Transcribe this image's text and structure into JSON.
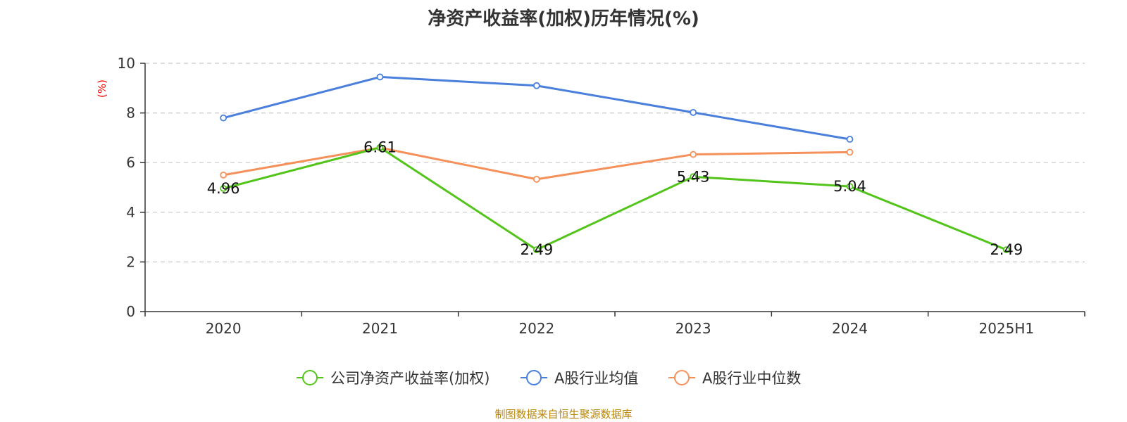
{
  "chart_data": {
    "type": "line",
    "title": "净资产收益率(加权)历年情况(%)",
    "ylabel": "(%)",
    "xlabel": "",
    "categories": [
      "2020",
      "2021",
      "2022",
      "2023",
      "2024",
      "2025H1"
    ],
    "ylim": [
      0,
      10
    ],
    "yticks": [
      0,
      2,
      4,
      6,
      8,
      10
    ],
    "grid": true,
    "legend_position": "bottom-center",
    "series": [
      {
        "name": "公司净资产收益率(加权)",
        "color": "#52c41a",
        "values": [
          4.96,
          6.61,
          2.49,
          5.43,
          5.04,
          2.49
        ],
        "labels": [
          "4.96",
          "6.61",
          "2.49",
          "5.43",
          "5.04",
          "2.49"
        ]
      },
      {
        "name": "A股行业均值",
        "color": "#4a7fdc",
        "values": [
          7.8,
          9.45,
          9.1,
          8.02,
          6.94,
          null
        ]
      },
      {
        "name": "A股行业中位数",
        "color": "#f5905a",
        "values": [
          5.5,
          6.6,
          5.33,
          6.33,
          6.42,
          null
        ]
      }
    ]
  },
  "source_note": "制图数据来自恒生聚源数据库"
}
